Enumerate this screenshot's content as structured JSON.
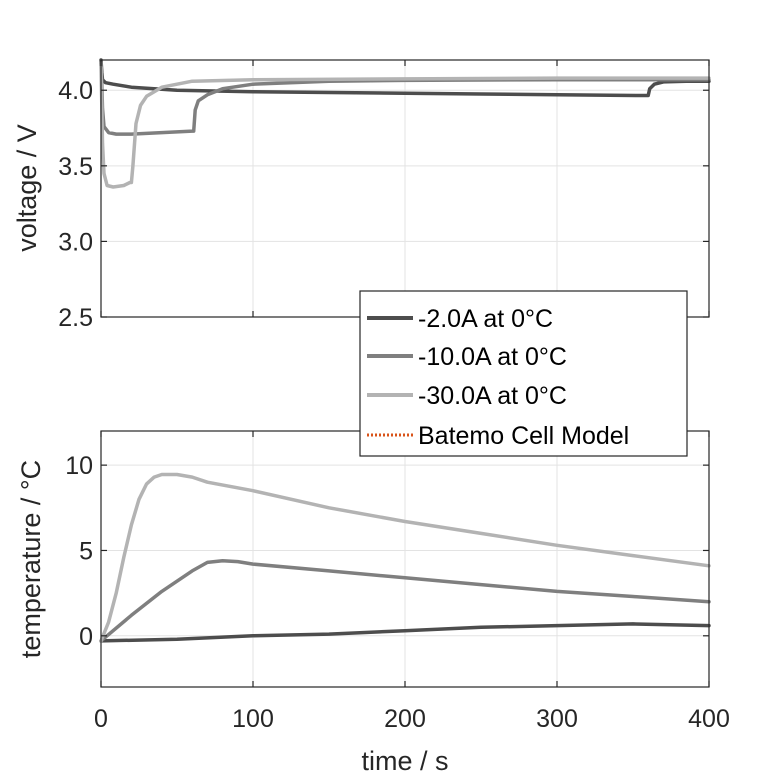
{
  "chart_data": [
    {
      "type": "line",
      "ylabel": "voltage / V",
      "xlim": [
        0,
        400
      ],
      "ylim": [
        2.5,
        4.2
      ],
      "yticks": [
        2.5,
        3.0,
        3.5,
        4.0
      ],
      "yticklabels": [
        "2.5",
        "3.0",
        "3.5",
        "4.0"
      ],
      "xticks": [
        0,
        100,
        200,
        300,
        400
      ],
      "grid": true,
      "series": [
        {
          "name": "-2.0A at 0°C",
          "color": "#4d4d4d",
          "x": [
            0,
            0.5,
            1,
            3,
            8,
            20,
            50,
            100,
            150,
            200,
            250,
            300,
            355,
            360,
            361,
            364,
            370,
            385,
            400
          ],
          "y": [
            4.2,
            4.12,
            4.07,
            4.05,
            4.04,
            4.02,
            4.0,
            3.99,
            3.985,
            3.98,
            3.975,
            3.97,
            3.965,
            3.965,
            4.01,
            4.04,
            4.055,
            4.06,
            4.06
          ]
        },
        {
          "name": "-10.0A at 0°C",
          "color": "#7f7f7f",
          "x": [
            0,
            0.5,
            1,
            2,
            5,
            10,
            20,
            40,
            60,
            61,
            62,
            64,
            70,
            80,
            100,
            150,
            200,
            300,
            400
          ],
          "y": [
            4.18,
            4.05,
            3.88,
            3.76,
            3.72,
            3.71,
            3.71,
            3.72,
            3.73,
            3.73,
            3.87,
            3.93,
            3.97,
            4.01,
            4.04,
            4.06,
            4.065,
            4.07,
            4.07
          ]
        },
        {
          "name": "-30.0A at 0°C",
          "color": "#b3b3b3",
          "x": [
            0,
            0.5,
            1,
            2,
            4,
            8,
            15,
            19,
            20,
            21,
            23,
            26,
            30,
            40,
            60,
            100,
            200,
            300,
            400
          ],
          "y": [
            4.15,
            3.9,
            3.65,
            3.45,
            3.37,
            3.36,
            3.37,
            3.39,
            3.39,
            3.5,
            3.78,
            3.9,
            3.96,
            4.02,
            4.06,
            4.07,
            4.075,
            4.08,
            4.08
          ]
        }
      ]
    },
    {
      "type": "line",
      "ylabel": "temperature / °C",
      "xlabel": "time / s",
      "xlim": [
        0,
        400
      ],
      "ylim": [
        -3,
        12
      ],
      "yticks": [
        0,
        5,
        10
      ],
      "yticklabels": [
        "0",
        "5",
        "10"
      ],
      "xticks": [
        0,
        100,
        200,
        300,
        400
      ],
      "xticklabels": [
        "0",
        "100",
        "200",
        "300",
        "400"
      ],
      "grid": true,
      "series": [
        {
          "name": "-2.0A at 0°C",
          "color": "#4d4d4d",
          "x": [
            0,
            50,
            100,
            150,
            200,
            250,
            300,
            350,
            400
          ],
          "y": [
            -0.3,
            -0.2,
            0.0,
            0.1,
            0.3,
            0.5,
            0.6,
            0.7,
            0.6
          ]
        },
        {
          "name": "-10.0A at 0°C",
          "color": "#7f7f7f",
          "x": [
            0,
            20,
            40,
            60,
            70,
            80,
            90,
            100,
            150,
            200,
            250,
            300,
            350,
            400
          ],
          "y": [
            -0.3,
            1.2,
            2.6,
            3.8,
            4.3,
            4.4,
            4.35,
            4.2,
            3.8,
            3.4,
            3.0,
            2.6,
            2.3,
            2.0
          ]
        },
        {
          "name": "-30.0A at 0°C",
          "color": "#b3b3b3",
          "x": [
            0,
            5,
            10,
            15,
            20,
            25,
            30,
            35,
            40,
            50,
            60,
            70,
            100,
            150,
            200,
            250,
            300,
            350,
            400
          ],
          "y": [
            -0.3,
            0.8,
            2.5,
            4.6,
            6.5,
            8.0,
            8.9,
            9.3,
            9.45,
            9.45,
            9.3,
            9.0,
            8.5,
            7.5,
            6.7,
            6.0,
            5.3,
            4.7,
            4.1
          ]
        }
      ]
    }
  ],
  "legend": {
    "placement": "bottom-right of upper axes",
    "entries": [
      {
        "label": "-2.0A at 0°C",
        "color": "#4d4d4d",
        "style": "solid"
      },
      {
        "label": "-10.0A at 0°C",
        "color": "#7f7f7f",
        "style": "solid"
      },
      {
        "label": "-30.0A at 0°C",
        "color": "#b3b3b3",
        "style": "solid"
      },
      {
        "label": "Batemo Cell Model",
        "color": "#d95319",
        "style": "dotted"
      }
    ]
  }
}
